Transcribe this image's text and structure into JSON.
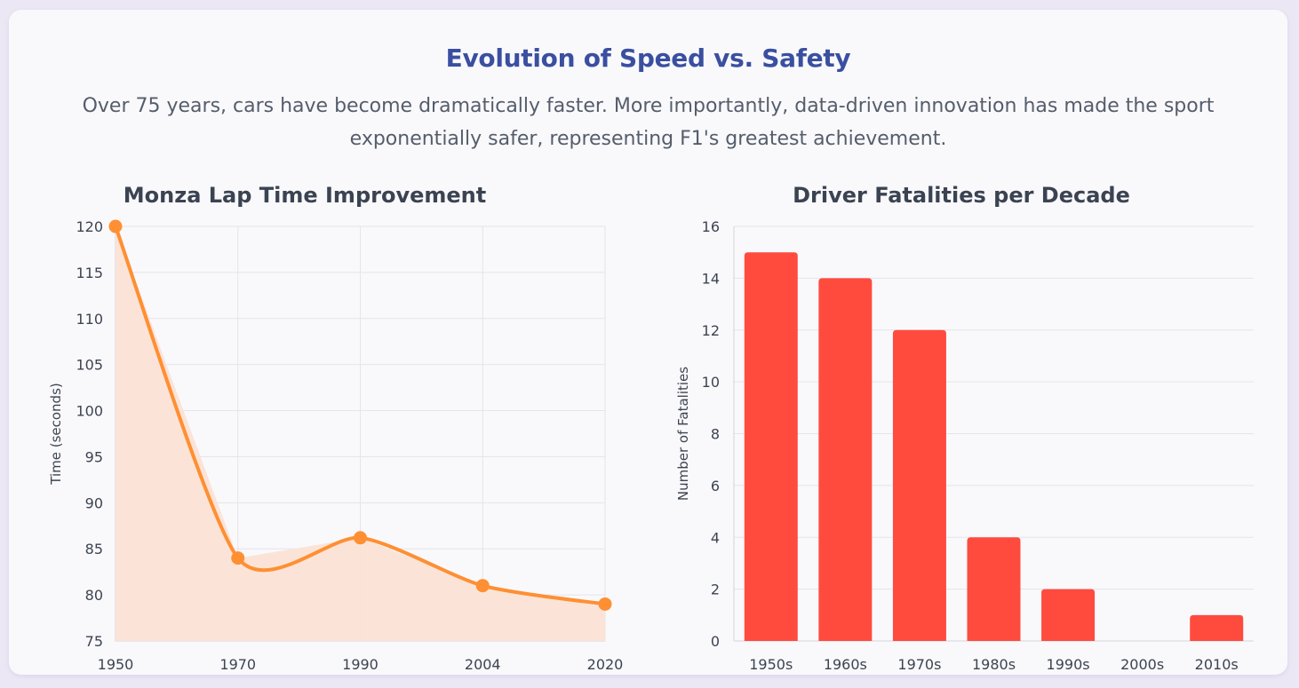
{
  "header": {
    "title": "Evolution of Speed vs. Safety",
    "subtitle": "Over 75 years, cars have become dramatically faster. More importantly, data-driven innovation has made the sport exponentially safer, representing F1's greatest achievement."
  },
  "colors": {
    "line": "#ff8f33",
    "area_fill": "#fbe3d5",
    "bar": "#ff4b3e",
    "title": "#3a4fa0"
  },
  "chart_data": [
    {
      "type": "line",
      "title": "Monza Lap Time Improvement",
      "xlabel": "",
      "ylabel": "Time (seconds)",
      "x": [
        "1950",
        "1970",
        "1990",
        "2004",
        "2020"
      ],
      "series": [
        {
          "values": [
            120,
            84,
            86.2,
            81,
            79
          ]
        }
      ],
      "ylim": [
        75,
        120
      ],
      "yticks": [
        120,
        115,
        110,
        105,
        100,
        95,
        90,
        85,
        80,
        75
      ],
      "filled_area": true,
      "grid": true
    },
    {
      "type": "bar",
      "title": "Driver Fatalities per Decade",
      "xlabel": "",
      "ylabel": "Number of Fatalities",
      "categories": [
        "1950s",
        "1960s",
        "1970s",
        "1980s",
        "1990s",
        "2000s",
        "2010s"
      ],
      "values": [
        15,
        14,
        12,
        4,
        2,
        0,
        1
      ],
      "ylim": [
        0,
        16
      ],
      "yticks": [
        16,
        14,
        12,
        10,
        8,
        6,
        4,
        2,
        0
      ],
      "grid": true
    }
  ]
}
